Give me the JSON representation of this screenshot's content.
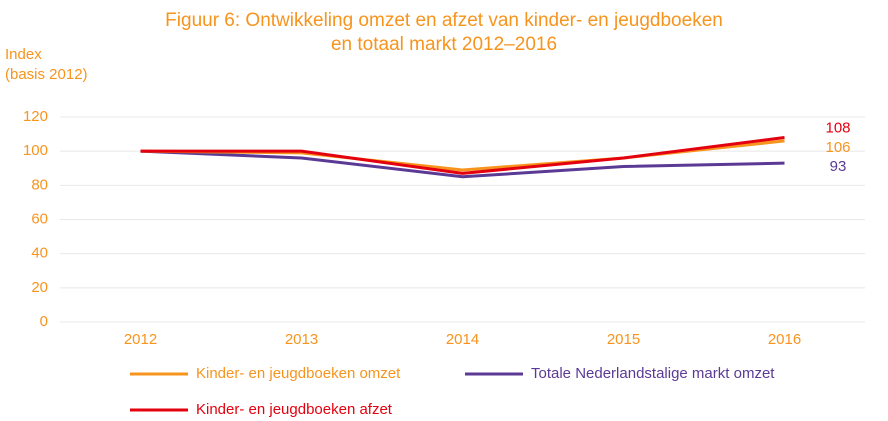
{
  "chart_data": {
    "type": "line",
    "title": [
      "Figuur 6: Ontwikkeling omzet en afzet van kinder- en jeugdboeken",
      "en totaal markt 2012–2016"
    ],
    "y_label": [
      "Index",
      "(basis 2012)"
    ],
    "categories": [
      "2012",
      "2013",
      "2014",
      "2015",
      "2016"
    ],
    "series": [
      {
        "name": "Kinder- en jeugdboeken omzet",
        "color": "#f7941d",
        "values": [
          100,
          99,
          89,
          96,
          106
        ]
      },
      {
        "name": "Totale Nederlandstalige markt omzet",
        "color": "#5b3a96",
        "values": [
          100,
          96,
          85,
          91,
          93
        ]
      },
      {
        "name": "Kinder- en jeugdboeken afzet",
        "color": "#e3000f",
        "values": [
          100,
          100,
          87,
          96,
          108
        ]
      }
    ],
    "ylim": [
      0,
      120
    ],
    "yticks": [
      0,
      20,
      40,
      60,
      80,
      100,
      120
    ],
    "grid": true
  }
}
